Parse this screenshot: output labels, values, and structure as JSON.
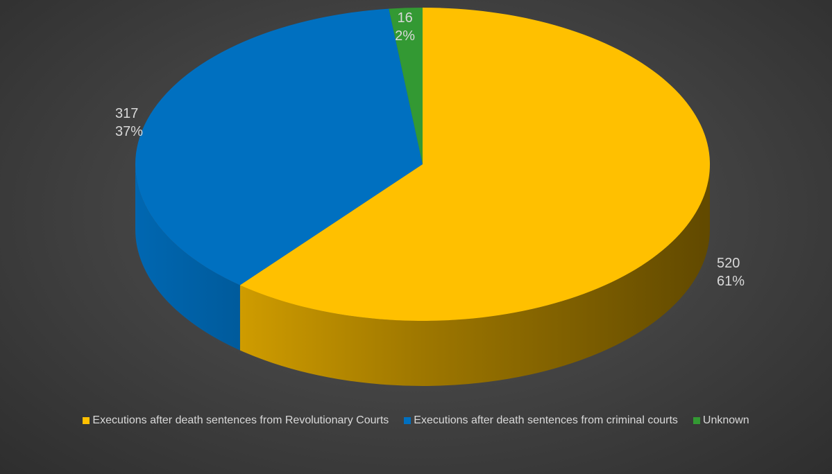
{
  "chart_data": {
    "type": "pie",
    "style": "3d-exploded-depth",
    "title": "",
    "series": [
      {
        "slices": [
          {
            "label": "Executions after death sentences from Revolutionary Courts",
            "value": 520,
            "percent": "61%",
            "value_label": "520",
            "color": "#FFC000"
          },
          {
            "label": "Executions after death sentences from criminal courts",
            "value": 317,
            "percent": "37%",
            "value_label": "317",
            "color": "#0070C0"
          },
          {
            "label": "Unknown",
            "value": 16,
            "percent": "2%",
            "value_label": "16",
            "color": "#339933"
          }
        ]
      }
    ],
    "legend_position": "bottom",
    "background_color": "#404040",
    "label_color": "#D9D9D9"
  }
}
